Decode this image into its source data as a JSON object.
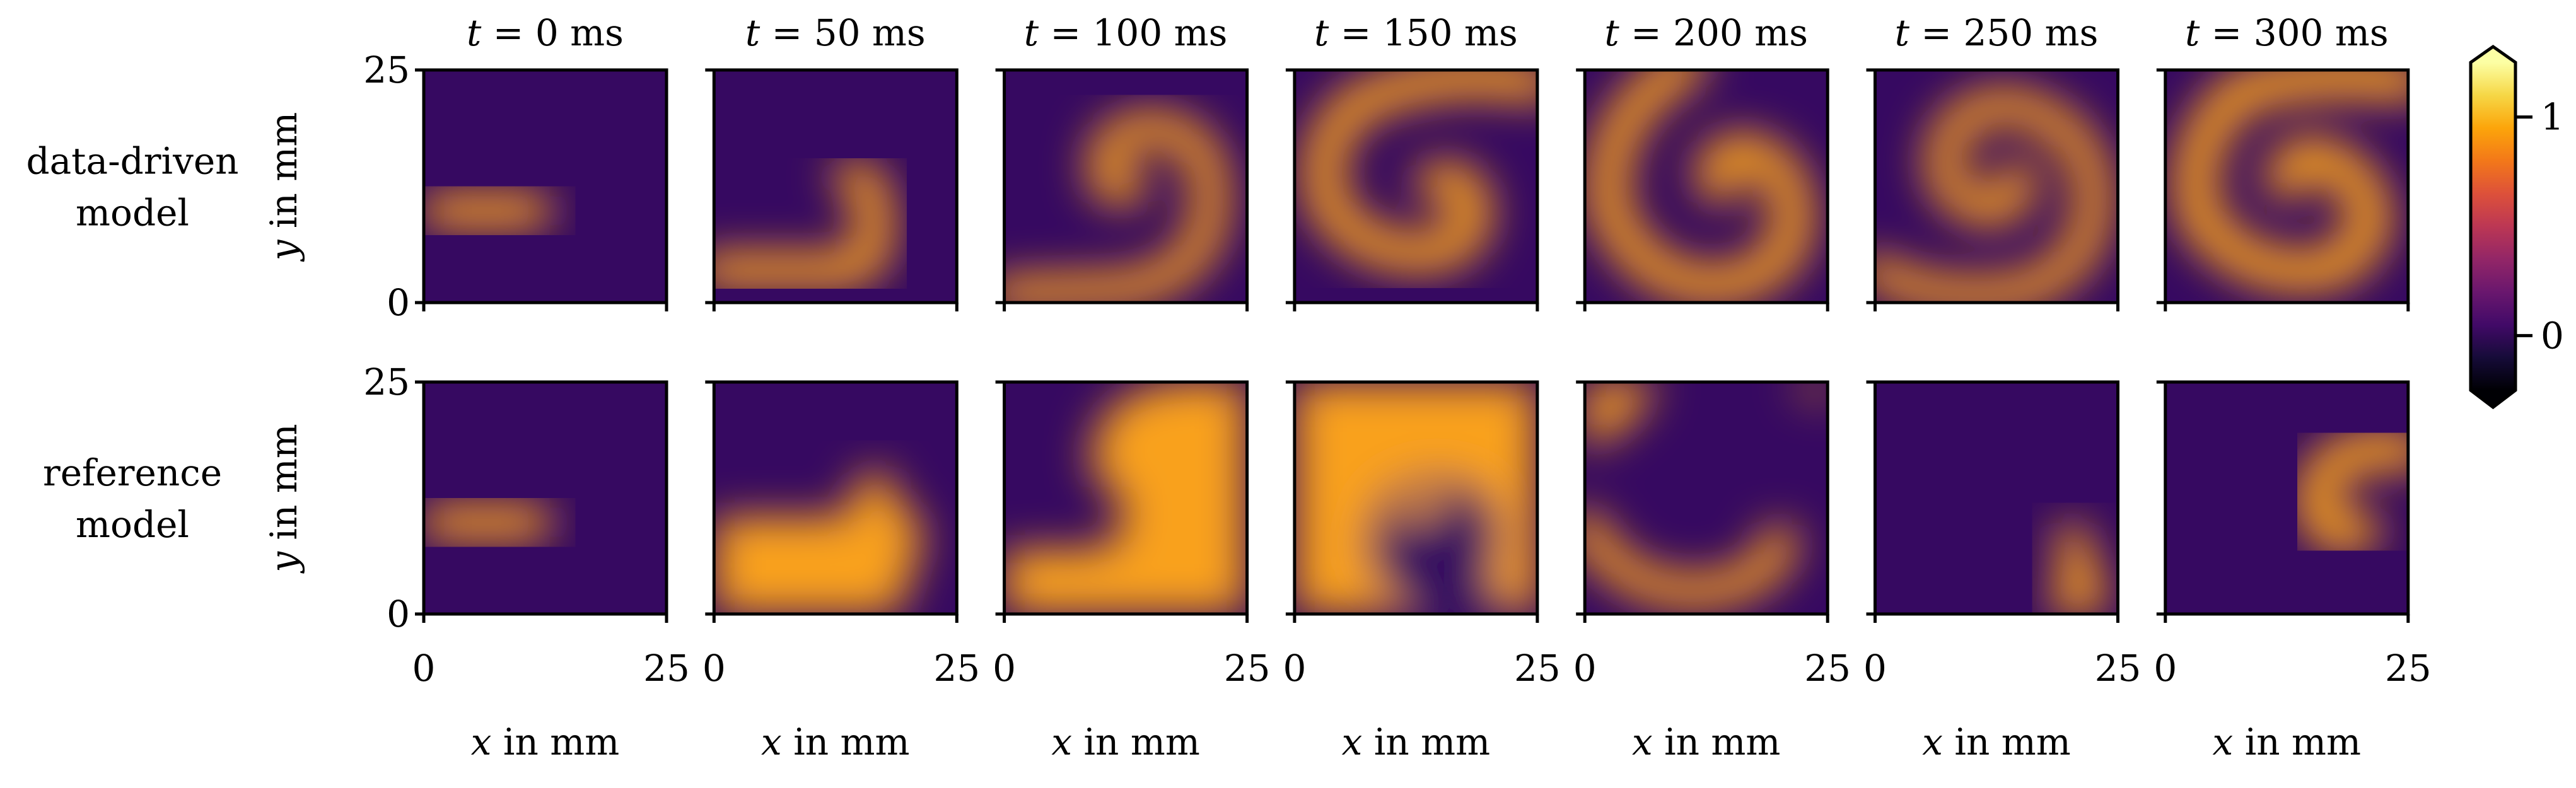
{
  "chart_data": {
    "type": "heatmap",
    "panel_titles": [
      "t = 0 ms",
      "t = 50 ms",
      "t = 100 ms",
      "t = 150 ms",
      "t = 200 ms",
      "t = 250 ms",
      "t = 300 ms"
    ],
    "title_parts": [
      {
        "var": "t",
        "eq": " = ",
        "value": "0",
        "unit": " ms"
      },
      {
        "var": "t",
        "eq": " = ",
        "value": "50",
        "unit": " ms"
      },
      {
        "var": "t",
        "eq": " = ",
        "value": "100",
        "unit": " ms"
      },
      {
        "var": "t",
        "eq": " = ",
        "value": "150",
        "unit": " ms"
      },
      {
        "var": "t",
        "eq": " = ",
        "value": "200",
        "unit": " ms"
      },
      {
        "var": "t",
        "eq": " = ",
        "value": "250",
        "unit": " ms"
      },
      {
        "var": "t",
        "eq": " = ",
        "value": "300",
        "unit": " ms"
      }
    ],
    "rows": [
      {
        "label_line1": "data-driven",
        "label_line2": "model"
      },
      {
        "label_line1": "reference",
        "label_line2": "model"
      }
    ],
    "xlabel": {
      "var": "x",
      "rest": " in mm"
    },
    "ylabel": {
      "var": "y",
      "rest": " in mm"
    },
    "xlim": [
      0,
      25
    ],
    "ylim": [
      0,
      25
    ],
    "x_ticks": [
      "0",
      "25"
    ],
    "y_ticks": [
      "0",
      "25"
    ],
    "colormap": "inferno",
    "colorbar": {
      "vmin": -0.25,
      "vmax": 1.25,
      "ticks": [
        "0",
        "1"
      ],
      "tick_values": [
        0,
        1
      ],
      "extend": "both"
    },
    "colors": {
      "rest": "#360961",
      "excited": "#f9a11a",
      "frame": "#000000"
    }
  }
}
